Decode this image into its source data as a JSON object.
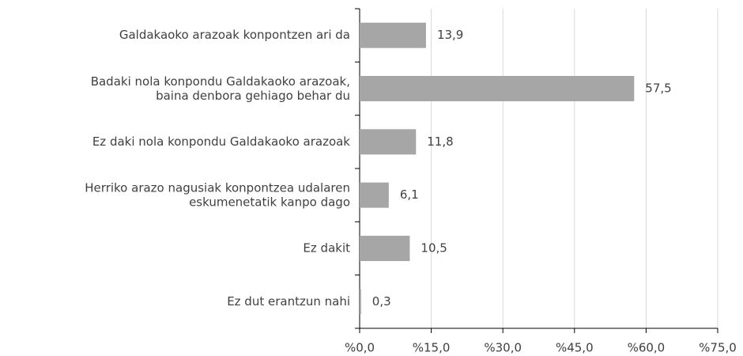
{
  "chart_data": {
    "type": "bar",
    "orientation": "horizontal",
    "categories": [
      "Galdakaoko arazoak konpontzen ari da",
      "Badaki nola konpondu Galdakaoko arazoak,\nbaina denbora gehiago behar du",
      "Ez daki nola konpondu Galdakaoko arazoak",
      "Herriko arazo nagusiak konpontzea udalaren\neskumenetatik kanpo dago",
      "Ez dakit",
      "Ez dut erantzun nahi"
    ],
    "values": [
      13.9,
      57.5,
      11.8,
      6.1,
      10.5,
      0.3
    ],
    "value_labels": [
      "13,9",
      "57,5",
      "11,8",
      "6,1",
      "10,5",
      "0,3"
    ],
    "color": "#a6a6a6",
    "xlim": [
      0,
      75
    ],
    "xticks": [
      {
        "value": 0,
        "label": "%0,0"
      },
      {
        "value": 15,
        "label": "%15,0"
      },
      {
        "value": 30,
        "label": "%30,0"
      },
      {
        "value": 45,
        "label": "%45,0"
      },
      {
        "value": 60,
        "label": "%60,0"
      },
      {
        "value": 75,
        "label": "%75,0"
      }
    ],
    "grid": true
  }
}
